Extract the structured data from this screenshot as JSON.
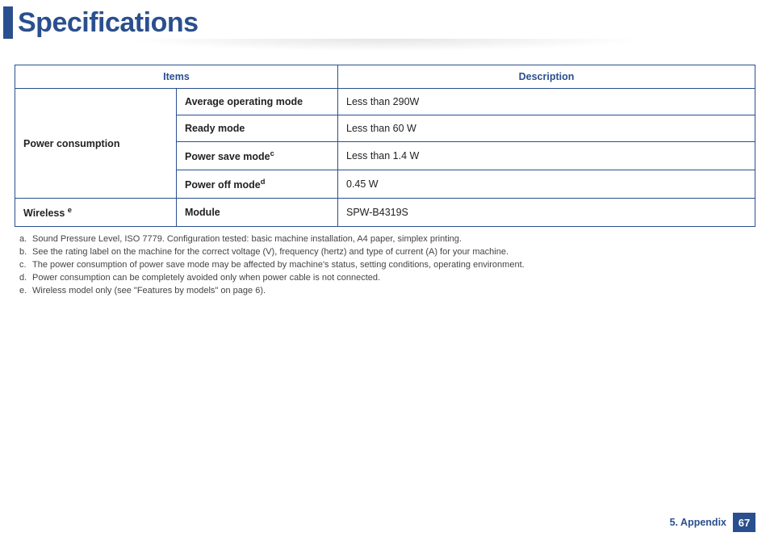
{
  "header": {
    "title": "Specifications"
  },
  "table": {
    "columns": [
      "Items",
      "Description"
    ],
    "categories": [
      {
        "label": "Power consumption",
        "rows": [
          {
            "item": "Average operating mode",
            "sup": "",
            "desc": "Less than 290W"
          },
          {
            "item": "Ready mode",
            "sup": "",
            "desc": "Less than 60 W"
          },
          {
            "item": "Power save mode",
            "sup": "c",
            "desc": "Less than 1.4 W"
          },
          {
            "item": "Power off mode",
            "sup": "d",
            "desc": "0.45 W"
          }
        ]
      },
      {
        "label": "Wireless",
        "label_sup": "e",
        "rows": [
          {
            "item": "Module",
            "sup": "",
            "desc": "SPW-B4319S"
          }
        ]
      }
    ]
  },
  "footnotes": [
    {
      "letter": "a.",
      "text": "Sound Pressure Level, ISO 7779. Configuration tested: basic machine installation, A4 paper, simplex printing."
    },
    {
      "letter": "b.",
      "text": "See the rating label on the machine for the correct voltage (V), frequency (hertz) and type of current (A) for your machine."
    },
    {
      "letter": "c.",
      "text": "The power consumption of power save mode may be affected by machine's status, setting conditions, operating environment."
    },
    {
      "letter": "d.",
      "text": "Power consumption can be completely avoided only when power cable is not connected."
    },
    {
      "letter": "e.",
      "text": "Wireless model only (see \"Features by models\" on page 6)."
    }
  ],
  "footer": {
    "section": "5. Appendix",
    "page": "67"
  },
  "colors": {
    "brand": "#2a4f8f",
    "text": "#222222",
    "footnote": "#444444",
    "background": "#ffffff"
  }
}
